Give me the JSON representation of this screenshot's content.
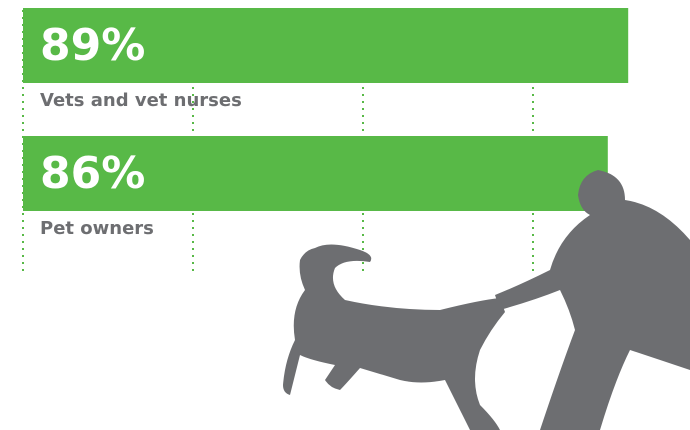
{
  "chart_data": {
    "type": "hbar",
    "categories": [
      "Vets and vet nurses",
      "Pet owners"
    ],
    "values": [
      89,
      86
    ],
    "value_labels": [
      "89%",
      "86%"
    ],
    "color": "#58b947",
    "xlim": [
      0,
      100
    ],
    "xticks": [
      0,
      25,
      50,
      75
    ],
    "grid": true
  }
}
